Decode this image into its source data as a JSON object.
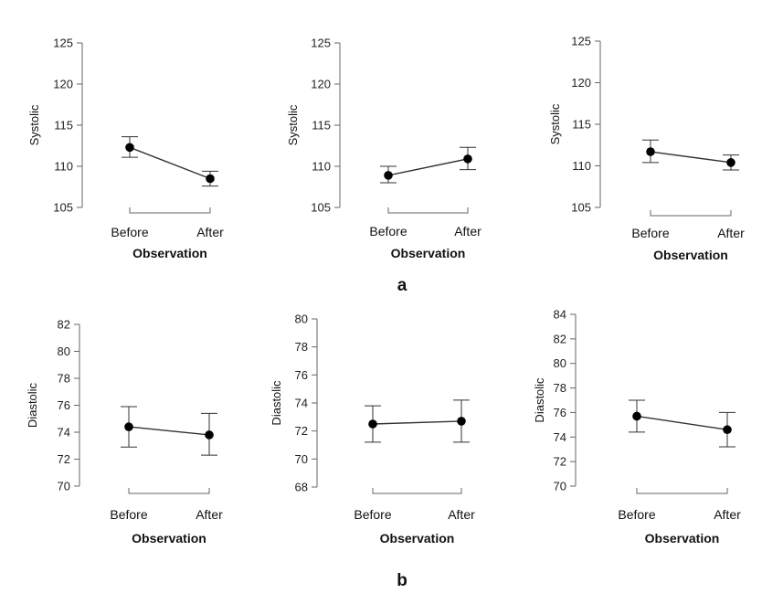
{
  "panel_labels": [
    "a",
    "b"
  ],
  "chart_data": [
    {
      "type": "line",
      "xlabel": "Observation",
      "ylabel": "Systolic",
      "categories": [
        "Before",
        "After"
      ],
      "yticks": [
        105,
        110,
        115,
        120,
        125
      ],
      "ylim": [
        105,
        125
      ],
      "values": [
        112.3,
        108.5
      ],
      "error_low": [
        111.1,
        107.6
      ],
      "error_high": [
        113.6,
        109.4
      ]
    },
    {
      "type": "line",
      "xlabel": "Observation",
      "ylabel": "Systolic",
      "categories": [
        "Before",
        "After"
      ],
      "yticks": [
        105,
        110,
        115,
        120,
        125
      ],
      "ylim": [
        105,
        125
      ],
      "values": [
        108.9,
        110.9
      ],
      "error_low": [
        108.0,
        109.6
      ],
      "error_high": [
        110.0,
        112.3
      ]
    },
    {
      "type": "line",
      "xlabel": "Observation",
      "ylabel": "Systolic",
      "categories": [
        "Before",
        "After"
      ],
      "yticks": [
        105,
        110,
        115,
        120,
        125
      ],
      "ylim": [
        105,
        125
      ],
      "values": [
        111.7,
        110.4
      ],
      "error_low": [
        110.4,
        109.5
      ],
      "error_high": [
        113.1,
        111.3
      ]
    },
    {
      "type": "line",
      "xlabel": "Observation",
      "ylabel": "Diastolic",
      "categories": [
        "Before",
        "After"
      ],
      "yticks": [
        70,
        72,
        74,
        76,
        78,
        80,
        82
      ],
      "ylim": [
        70,
        82
      ],
      "values": [
        74.4,
        73.8
      ],
      "error_low": [
        72.9,
        72.3
      ],
      "error_high": [
        75.9,
        75.4
      ]
    },
    {
      "type": "line",
      "xlabel": "Observation",
      "ylabel": "Diastolic",
      "categories": [
        "Before",
        "After"
      ],
      "yticks": [
        68,
        70,
        72,
        74,
        76,
        78,
        80
      ],
      "ylim": [
        68,
        80
      ],
      "values": [
        72.5,
        72.7
      ],
      "error_low": [
        71.2,
        71.2
      ],
      "error_high": [
        73.8,
        74.2
      ]
    },
    {
      "type": "line",
      "xlabel": "Observation",
      "ylabel": "Diastolic",
      "categories": [
        "Before",
        "After"
      ],
      "yticks": [
        70,
        72,
        74,
        76,
        78,
        80,
        82,
        84
      ],
      "ylim": [
        70,
        84
      ],
      "values": [
        75.7,
        74.6
      ],
      "error_low": [
        74.4,
        73.2
      ],
      "error_high": [
        77.0,
        76.0
      ]
    }
  ]
}
